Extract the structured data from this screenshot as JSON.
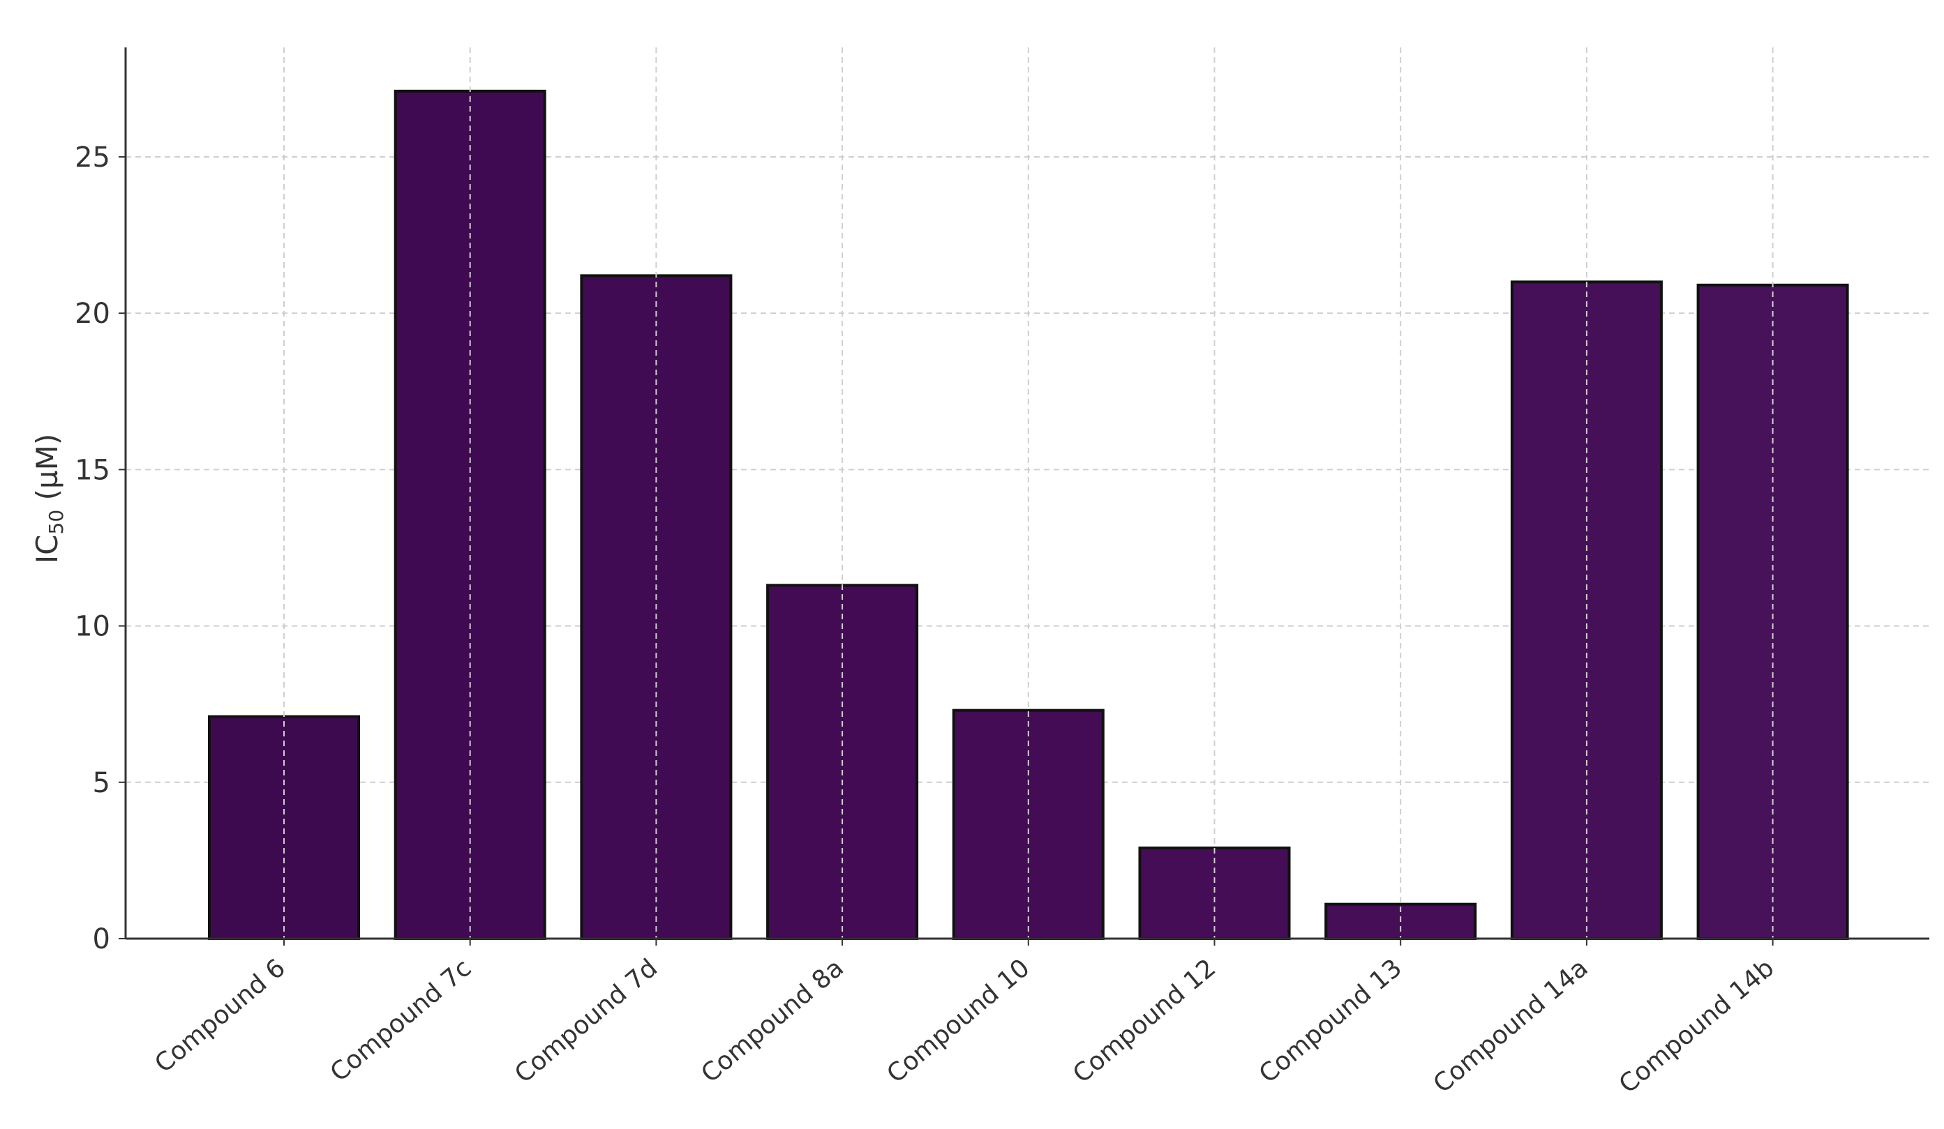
{
  "chart_data": {
    "type": "bar",
    "title": "",
    "xlabel": "",
    "ylabel": "IC",
    "ylabel_sub": "50",
    "ylabel_unit": " (µM)",
    "categories": [
      "Compound 6",
      "Compound 7c",
      "Compound 7d",
      "Compound 8a",
      "Compound 10",
      "Compound 12",
      "Compound 13",
      "Compound 14a",
      "Compound 14b"
    ],
    "values": [
      7.1,
      27.1,
      21.2,
      11.3,
      7.3,
      2.9,
      1.1,
      21.0,
      20.9
    ],
    "ylim": [
      0,
      28.5
    ],
    "yticks": [
      0,
      5,
      10,
      15,
      20,
      25
    ],
    "grid": true,
    "bar_colors": [
      "#3e0a4f",
      "#400a52",
      "#410b53",
      "#420b54",
      "#430c55",
      "#440d56",
      "#450e57",
      "#461058",
      "#47125a"
    ]
  }
}
